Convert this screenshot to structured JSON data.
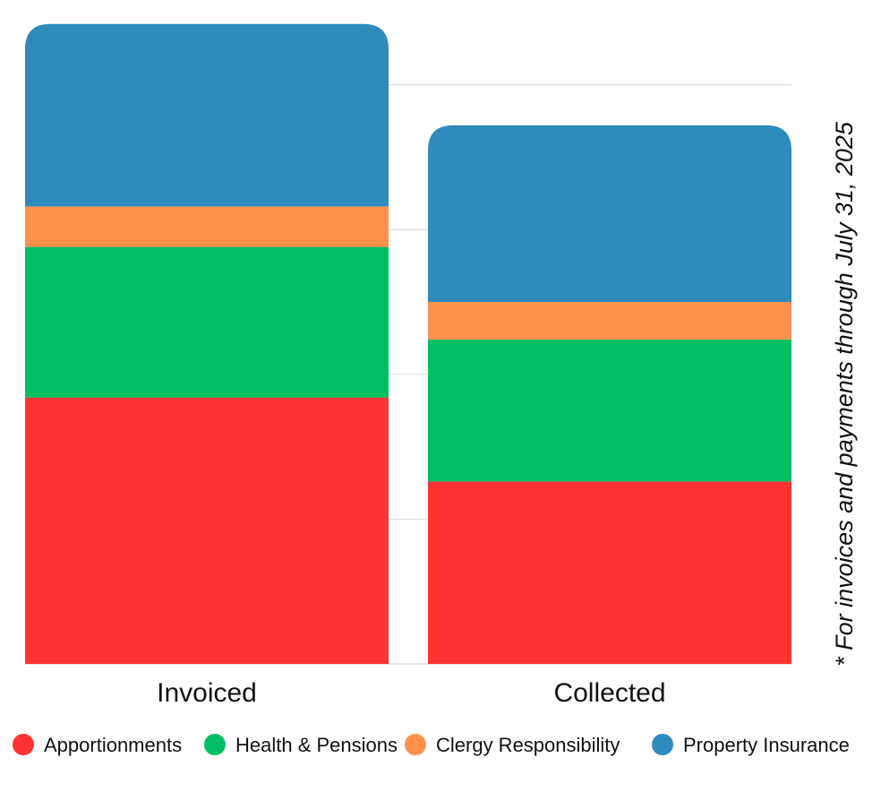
{
  "chart_data": {
    "type": "bar",
    "stacked": true,
    "title": "",
    "xlabel": "",
    "ylabel": "",
    "ylim": [
      0,
      110
    ],
    "grid": true,
    "gridlines": [
      0,
      25,
      50,
      75,
      100
    ],
    "categories": [
      "Invoiced",
      "Collected"
    ],
    "series": [
      {
        "name": "Apportionments",
        "color": "#ff3333",
        "values": [
          46,
          31.5
        ]
      },
      {
        "name": "Health & Pensions",
        "color": "#00bf63",
        "values": [
          26,
          24.5
        ]
      },
      {
        "name": "Clergy Responsibility",
        "color": "#ff914d",
        "values": [
          7,
          6.5
        ]
      },
      {
        "name": "Property Insurance",
        "color": "#2e8bbb",
        "values": [
          31.5,
          30.5
        ]
      }
    ],
    "legend_position": "bottom",
    "footnote": "* For invoices and payments through July 31, 2025"
  }
}
